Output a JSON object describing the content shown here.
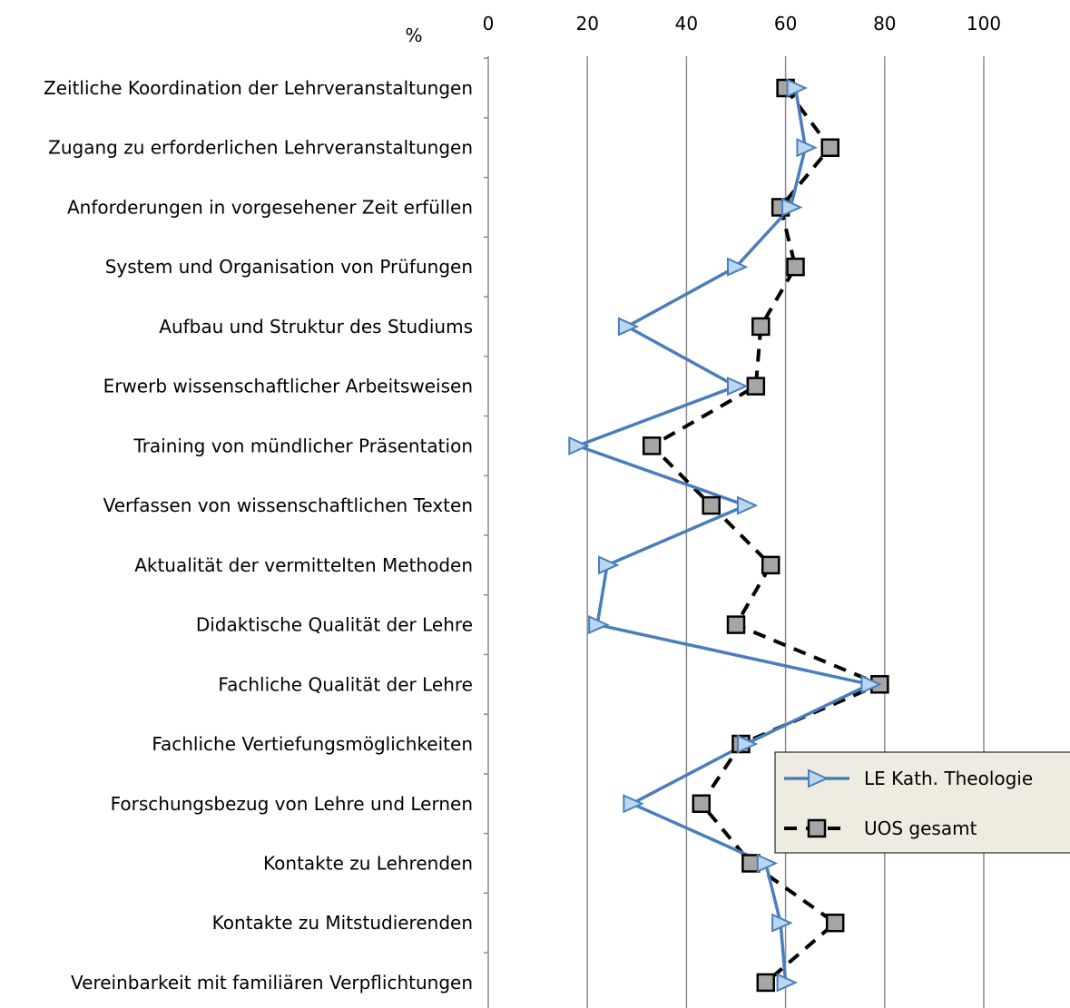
{
  "chart_data": {
    "type": "line",
    "orientation": "horizontal",
    "unit_label": "%",
    "xlim": [
      0,
      100
    ],
    "x_ticks": [
      "0",
      "20",
      "40",
      "60",
      "80",
      "100"
    ],
    "grid": true,
    "legend_position": "lower-right",
    "categories": [
      "Zeitliche Koordination der Lehrveranstaltungen",
      "Zugang zu erforderlichen Lehrveranstaltungen",
      "Anforderungen in vorgesehener Zeit erfüllen",
      "System und Organisation von Prüfungen",
      "Aufbau und Struktur des Studiums",
      "Erwerb wissenschaftlicher Arbeitsweisen",
      "Training von mündlicher Präsentation",
      "Verfassen von wissenschaftlichen Texten",
      "Aktualität der vermittelten Methoden",
      "Didaktische Qualität der Lehre",
      "Fachliche Qualität der Lehre",
      "Fachliche Vertiefungsmöglichkeiten",
      "Forschungsbezug von Lehre und Lernen",
      "Kontakte zu Lehrenden",
      "Kontakte zu Mitstudierenden",
      "Vereinbarkeit mit familiären Verpflichtungen"
    ],
    "series": [
      {
        "name": "LE Kath. Theologie",
        "color": "#4a7ebb",
        "marker": "triangle-right",
        "marker_fill": "#b9d7f0",
        "values": [
          62,
          64,
          61,
          50,
          28,
          50,
          18,
          52,
          24,
          22,
          77,
          52,
          29,
          56,
          59,
          60
        ]
      },
      {
        "name": "UOS gesamt",
        "color": "#000000",
        "marker": "square",
        "marker_fill": "#a6a6a6",
        "line_style": "dashed",
        "values": [
          60,
          69,
          59,
          62,
          55,
          54,
          33,
          45,
          57,
          50,
          79,
          51,
          43,
          53,
          70,
          56
        ]
      }
    ]
  }
}
